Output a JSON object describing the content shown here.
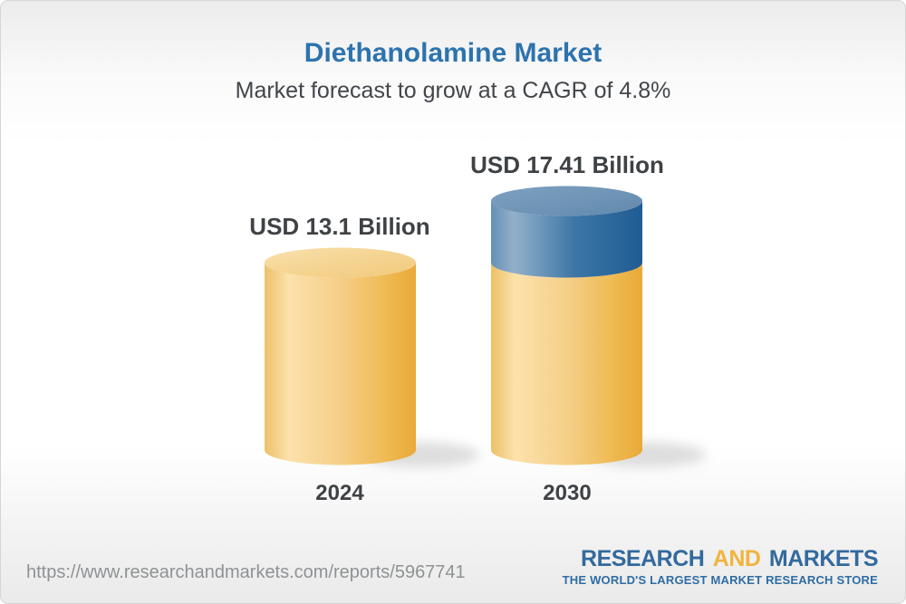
{
  "header": {
    "title": "Diethanolamine Market",
    "subtitle": "Market forecast to grow at a CAGR of 4.8%"
  },
  "chart_data": {
    "type": "bar",
    "subtype": "3d-cylinder",
    "title": "Diethanolamine Market",
    "subtitle": "Market forecast to grow at a CAGR of 4.8%",
    "categories": [
      "2024",
      "2030"
    ],
    "values": [
      13.1,
      17.41
    ],
    "value_labels": [
      "USD 13.1 Billion",
      "USD 17.41 Billion"
    ],
    "unit": "USD Billion",
    "cagr_pct": 4.8,
    "xlabel": "",
    "ylabel": "",
    "legend": "none",
    "grid": false,
    "colors": {
      "base_segment_gold": "#f2c979",
      "growth_segment_blue": "#4a7dab",
      "value_label_text": "#3f4245",
      "title_text": "#2d73ae"
    }
  },
  "footer": {
    "url": "https://www.researchandmarkets.com/reports/5967741",
    "logo": {
      "word1": "RESEARCH",
      "word2": "AND",
      "word3": "MARKETS",
      "tagline": "THE WORLD'S LARGEST MARKET RESEARCH STORE",
      "blue": "#336a9e",
      "gold": "#f0b43f"
    }
  }
}
